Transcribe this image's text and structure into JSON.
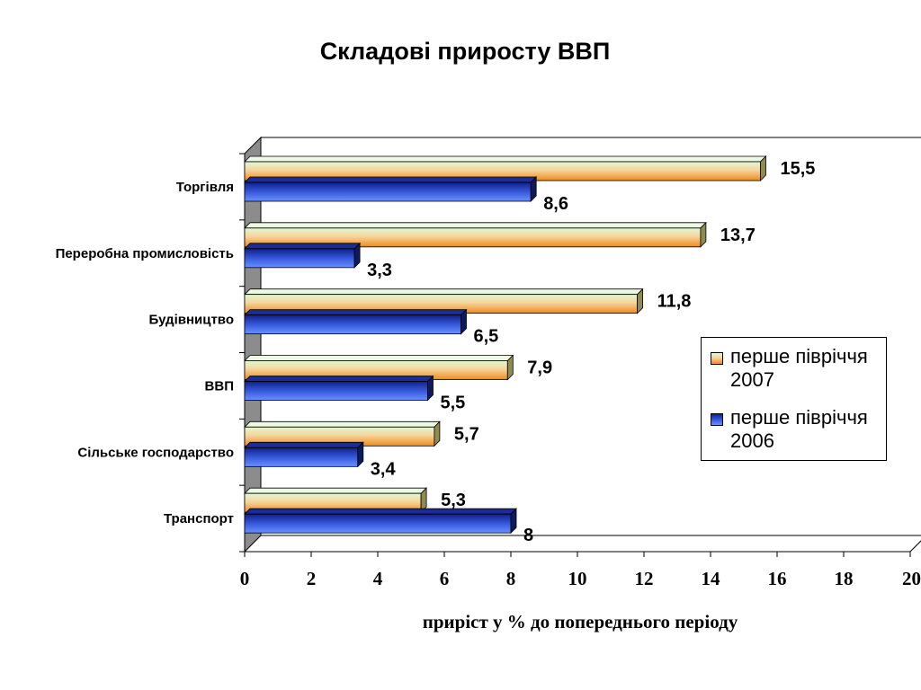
{
  "chart_data": {
    "type": "bar",
    "orientation": "horizontal",
    "title": "Складові приросту ВВП",
    "xlabel": "приріст у  % до попереднього періоду",
    "ylabel": "",
    "xlim": [
      0,
      20
    ],
    "xticks": [
      "0",
      "2",
      "4",
      "6",
      "8",
      "10",
      "12",
      "14",
      "16",
      "18",
      "20"
    ],
    "categories": [
      "Торгівля",
      "Переробна промисловість",
      "Будівництво",
      "ВВП",
      "Сільське господарство",
      "Транспорт"
    ],
    "series": [
      {
        "name": "перше півріччя 2007",
        "values": [
          15.5,
          13.7,
          11.8,
          7.9,
          5.7,
          5.3
        ],
        "labels": [
          "15,5",
          "13,7",
          "11,8",
          "7,9",
          "5,7",
          "5,3"
        ],
        "color_top": "#d8f4c8",
        "color_bottom": "#f59a30",
        "color_side": "#8a8a50"
      },
      {
        "name": "перше півріччя 2006",
        "values": [
          8.6,
          3.3,
          6.5,
          5.5,
          3.4,
          8
        ],
        "labels": [
          "8,6",
          "3,3",
          "6,5",
          "5,5",
          "3,4",
          "8"
        ],
        "color_top": "#1a2fa8",
        "color_bottom": "#4f78f0",
        "color_side": "#0d1a5e"
      }
    ],
    "legend_position": "right",
    "grid": false,
    "style": "3d"
  }
}
